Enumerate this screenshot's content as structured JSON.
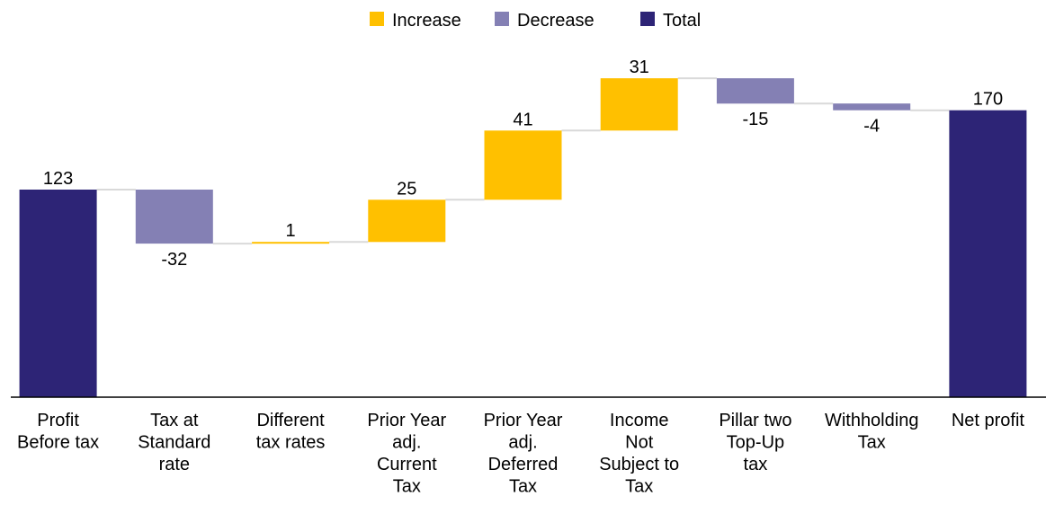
{
  "chart_data": {
    "type": "bar",
    "subtype": "waterfall",
    "title": "",
    "xlabel": "",
    "ylabel": "",
    "grid": false,
    "legend_position": "top-center",
    "legend": [
      {
        "name": "Increase",
        "color": "#FFC000"
      },
      {
        "name": "Decrease",
        "color": "#8480B4"
      },
      {
        "name": "Total",
        "color": "#2D2476"
      }
    ],
    "categories": [
      [
        "Profit",
        "Before tax"
      ],
      [
        "Tax at",
        "Standard",
        "rate"
      ],
      [
        "Different",
        "tax rates"
      ],
      [
        "Prior Year",
        "adj.",
        "Current",
        "Tax"
      ],
      [
        "Prior Year",
        "adj.",
        "Deferred",
        "Tax"
      ],
      [
        "Income",
        "Not",
        "Subject to",
        "Tax"
      ],
      [
        "Pillar two",
        "Top-Up",
        "tax"
      ],
      [
        "Withholding",
        "Tax"
      ],
      [
        "Net profit"
      ]
    ],
    "values": [
      123,
      -32,
      1,
      25,
      41,
      31,
      -15,
      -4,
      170
    ],
    "value_labels": [
      "123",
      "-32",
      "1",
      "25",
      "41",
      "31",
      "-15",
      "-4",
      "170"
    ],
    "kinds": [
      "total",
      "decrease",
      "increase",
      "increase",
      "increase",
      "increase",
      "decrease",
      "decrease",
      "total"
    ],
    "ylim": [
      0,
      190
    ],
    "colors": {
      "increase": "#FFC000",
      "decrease": "#8480B4",
      "total": "#2D2476",
      "connector": "#D9D9D9",
      "axis": "#000000"
    }
  }
}
